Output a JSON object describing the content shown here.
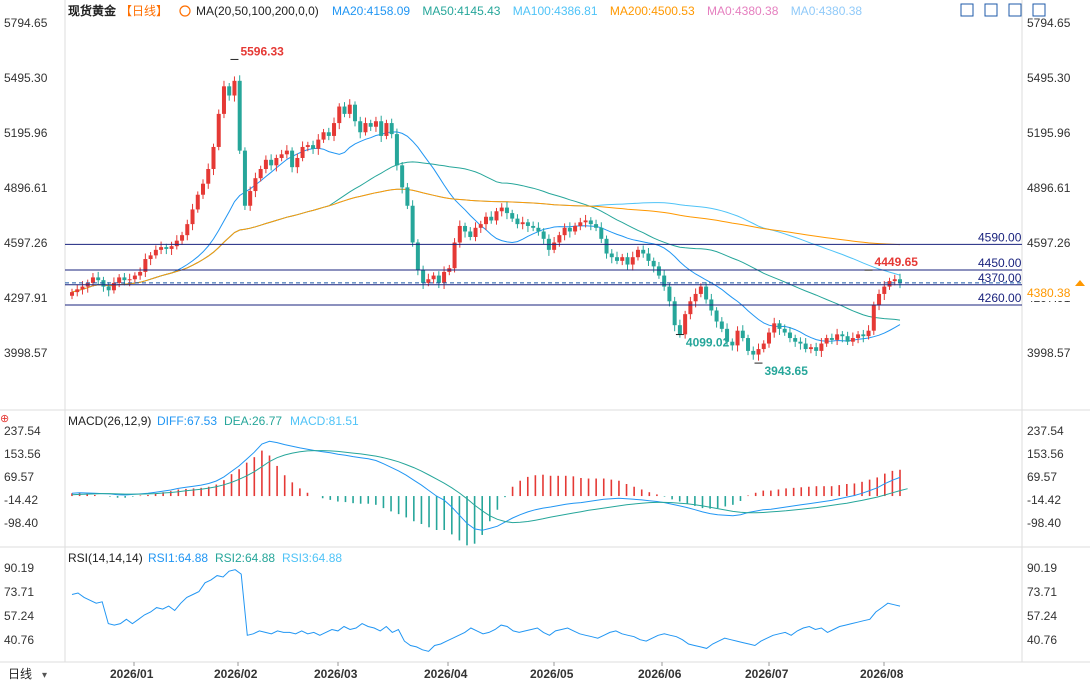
{
  "header": {
    "symbol": "现货黄金",
    "period": "【日线】",
    "ma_label": "MA(20,50,100,200,0,0)",
    "ma_values": [
      {
        "text": "MA20:4158.09",
        "color": "#2196f3"
      },
      {
        "text": "MA50:4145.43",
        "color": "#26a69a"
      },
      {
        "text": "MA100:4386.81",
        "color": "#4fc3f7"
      },
      {
        "text": "MA200:4500.53",
        "color": "#ff9800"
      },
      {
        "text": "MA0:4380.38",
        "color": "#e57fbf"
      },
      {
        "text": "MA0:4380.38",
        "color": "#90caf9"
      }
    ]
  },
  "toolbar": {
    "icons": [
      "layout-icon",
      "grid-icon",
      "crosshair-icon",
      "fullscreen-icon"
    ]
  },
  "price_axis": {
    "labels": [
      "5794.65",
      "5495.30",
      "5195.96",
      "4896.61",
      "4597.26",
      "4297.91",
      "3998.57"
    ]
  },
  "macd_panel": {
    "title": "MACD(26,12,9)",
    "diff": "DIFF:67.53",
    "dea": "DEA:26.77",
    "macd": "MACD:81.51",
    "axis_labels": [
      "237.54",
      "153.56",
      "69.57",
      "-14.42",
      "-98.40"
    ]
  },
  "rsi_panel": {
    "title": "RSI(14,14,14)",
    "rsi1": "RSI1:64.88",
    "rsi2": "RSI2:64.88",
    "rsi3": "RSI3:64.88",
    "axis_labels": [
      "90.19",
      "73.71",
      "57.24",
      "40.76"
    ]
  },
  "x_axis": {
    "period_button": "日线",
    "labels": [
      "2026/01",
      "2026/02",
      "2026/03",
      "2026/04",
      "2026/05",
      "2026/06",
      "2026/07",
      "2026/08"
    ]
  },
  "colors": {
    "up": "#e53935",
    "down": "#26a69a",
    "hline": "#1a237e",
    "current": "#ff9800"
  },
  "chart_data": {
    "type": "candlestick",
    "title": "现货黄金 日线",
    "y_range": [
      3850,
      5870
    ],
    "price_levels": [
      4590.0,
      4450.0,
      4370.0,
      4260.0
    ],
    "current_price": "4380.38",
    "annotations": [
      {
        "label": "5596.33",
        "value": 5596.33,
        "kind": "high"
      },
      {
        "label": "4099.02",
        "value": 4099.02,
        "kind": "low"
      },
      {
        "label": "3943.65",
        "value": 3943.65,
        "kind": "low"
      },
      {
        "label": "4449.65",
        "value": 4449.65,
        "kind": "high"
      }
    ],
    "closes": [
      4330,
      4345,
      4360,
      4380,
      4410,
      4395,
      4360,
      4340,
      4380,
      4410,
      4395,
      4400,
      4420,
      4440,
      4510,
      4530,
      4560,
      4575,
      4565,
      4580,
      4610,
      4640,
      4700,
      4780,
      4860,
      4920,
      5000,
      5120,
      5300,
      5450,
      5400,
      5480,
      5100,
      4800,
      4880,
      4950,
      5000,
      5050,
      5020,
      5060,
      5080,
      5100,
      5010,
      5060,
      5120,
      5130,
      5110,
      5160,
      5200,
      5180,
      5250,
      5340,
      5300,
      5350,
      5260,
      5200,
      5250,
      5230,
      5260,
      5180,
      5250,
      5190,
      5020,
      4900,
      4800,
      4600,
      4450,
      4380,
      4400,
      4420,
      4380,
      4440,
      4460,
      4600,
      4690,
      4660,
      4630,
      4680,
      4700,
      4740,
      4720,
      4770,
      4790,
      4760,
      4730,
      4700,
      4710,
      4690,
      4680,
      4660,
      4620,
      4560,
      4600,
      4640,
      4680,
      4660,
      4690,
      4710,
      4720,
      4700,
      4680,
      4620,
      4540,
      4520,
      4500,
      4520,
      4480,
      4520,
      4560,
      4540,
      4500,
      4470,
      4420,
      4360,
      4280,
      4150,
      4100,
      4210,
      4280,
      4320,
      4360,
      4290,
      4230,
      4170,
      4130,
      4060,
      4040,
      4120,
      4080,
      4010,
      3990,
      4020,
      4050,
      4110,
      4160,
      4130,
      4110,
      4080,
      4060,
      4050,
      4020,
      4030,
      4010,
      4050,
      4080,
      4070,
      4100,
      4090,
      4060,
      4080,
      4100,
      4090,
      4120,
      4260,
      4320,
      4360,
      4390,
      4400,
      4380
    ],
    "rsi": [
      72,
      73,
      70,
      68,
      66,
      67,
      52,
      51,
      52,
      55,
      52,
      55,
      58,
      60,
      63,
      62,
      64,
      61,
      66,
      70,
      72,
      74,
      80,
      82,
      85,
      84,
      88,
      89,
      86,
      44,
      45,
      47,
      46,
      45,
      47,
      46,
      46,
      45,
      47,
      45,
      46,
      44,
      46,
      48,
      47,
      50,
      48,
      49,
      52,
      50,
      49,
      47,
      50,
      46,
      48,
      40,
      37,
      36,
      34,
      33,
      37,
      38,
      40,
      42,
      44,
      46,
      49,
      47,
      45,
      46,
      48,
      51,
      50,
      47,
      46,
      47,
      48,
      49,
      46,
      44,
      47,
      48,
      49,
      47,
      45,
      44,
      43,
      42,
      44,
      46,
      47,
      45,
      44,
      43,
      41,
      40,
      42,
      44,
      45,
      44,
      43,
      41,
      38,
      37,
      36,
      35,
      38,
      40,
      42,
      41,
      40,
      39,
      38,
      37,
      40,
      42,
      44,
      45,
      46,
      44,
      47,
      49,
      50,
      48,
      49,
      46,
      48,
      50,
      51,
      52,
      53,
      54,
      55,
      60,
      63,
      66,
      65,
      64
    ],
    "macd_diff": [
      10,
      12,
      11,
      10,
      9,
      8,
      5,
      4,
      6,
      8,
      10,
      14,
      18,
      22,
      28,
      32,
      36,
      40,
      46,
      55,
      70,
      90,
      110,
      135,
      160,
      190,
      200,
      195,
      188,
      182,
      176,
      171,
      166,
      162,
      158,
      153,
      149,
      144,
      140,
      136,
      130,
      118,
      105,
      92,
      76,
      58,
      40,
      20,
      0,
      -15,
      -40,
      -70,
      -100,
      -120,
      -125,
      -118,
      -110,
      -95,
      -80,
      -68,
      -58,
      -50,
      -44,
      -40,
      -35,
      -30,
      -26,
      -24,
      -20,
      -16,
      -12,
      -10,
      -8,
      -10,
      -12,
      -14,
      -17,
      -20,
      -24,
      -30,
      -36,
      -42,
      -50,
      -58,
      -64,
      -68,
      -70,
      -72,
      -68,
      -60,
      -55,
      -50,
      -48,
      -44,
      -40,
      -36,
      -32,
      -28,
      -24,
      -20,
      -16,
      -10,
      -4,
      2,
      10,
      20,
      30,
      45,
      58,
      68
    ],
    "macd_dea": [
      5,
      6,
      7,
      8,
      9,
      9,
      8,
      7,
      7,
      7,
      8,
      9,
      11,
      13,
      16,
      19,
      22,
      25,
      29,
      34,
      41,
      50,
      61,
      74,
      89,
      107,
      126,
      140,
      150,
      157,
      162,
      165,
      166,
      166,
      165,
      163,
      160,
      157,
      154,
      150,
      146,
      140,
      133,
      125,
      115,
      104,
      91,
      77,
      62,
      47,
      30,
      11,
      -10,
      -33,
      -54,
      -72,
      -85,
      -93,
      -97,
      -96,
      -93,
      -88,
      -83,
      -77,
      -72,
      -67,
      -62,
      -57,
      -52,
      -48,
      -44,
      -40,
      -36,
      -32,
      -29,
      -26,
      -24,
      -23,
      -23,
      -24,
      -26,
      -28,
      -32,
      -36,
      -41,
      -46,
      -51,
      -56,
      -59,
      -61,
      -61,
      -60,
      -58,
      -56,
      -54,
      -51,
      -48,
      -45,
      -42,
      -38,
      -34,
      -30,
      -26,
      -21,
      -16,
      -10,
      -4,
      4,
      12,
      20,
      27
    ]
  }
}
